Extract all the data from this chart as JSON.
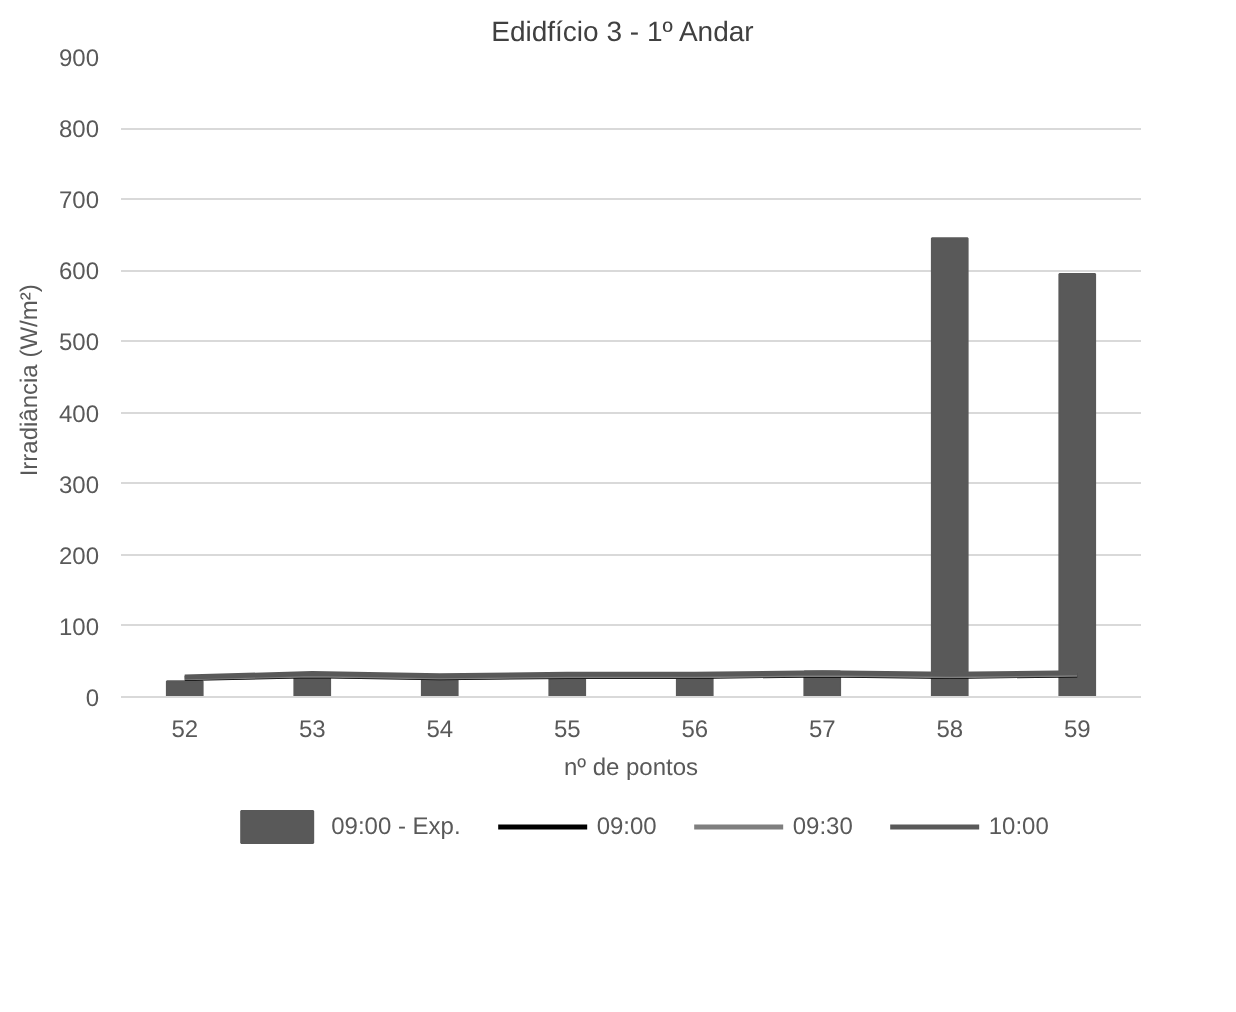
{
  "chart_data": {
    "type": "bar",
    "title": "Edidfício 3  -  1º Andar",
    "xlabel": "nº de pontos",
    "ylabel": "Irradiância  (W/m²)",
    "categories": [
      "52",
      "53",
      "54",
      "55",
      "56",
      "57",
      "58",
      "59"
    ],
    "series": [
      {
        "name": "09:00 - Exp.",
        "color": "#595959",
        "values": [
          22,
          33,
          30,
          32,
          30,
          36,
          645,
          595
        ]
      },
      {
        "name": "09:00",
        "type": "line",
        "color": "#000000",
        "values": [
          26,
          30,
          27,
          29,
          29,
          31,
          29,
          31
        ]
      },
      {
        "name": "09:30",
        "type": "line",
        "color": "#7f7f7f",
        "values": [
          27,
          31,
          28,
          30,
          30,
          32,
          30,
          32
        ]
      },
      {
        "name": "10:00",
        "type": "line",
        "color": "#595959",
        "values": [
          28,
          33,
          30,
          32,
          32,
          34,
          32,
          34
        ]
      }
    ],
    "ylim": [
      0,
      900
    ],
    "yticks": [
      0,
      100,
      200,
      300,
      400,
      500,
      600,
      700,
      800,
      900
    ],
    "grid": "y",
    "legend": "bottom"
  }
}
